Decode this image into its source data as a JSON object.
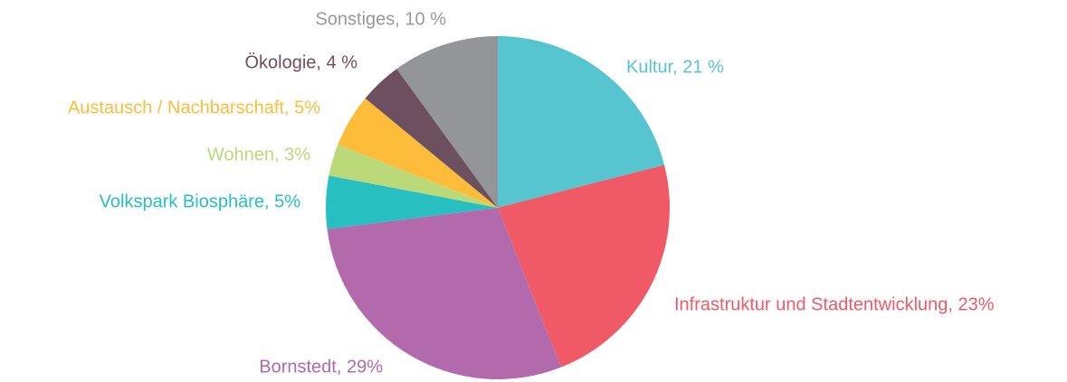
{
  "chart_data": {
    "type": "pie",
    "labels": [
      "Kultur, 21 %",
      "Infrastruktur und Stadtentwicklung, 23%",
      "Bornstedt, 29%",
      "Volkspark Biosphäre, 5%",
      "Wohnen, 3%",
      "Austausch / Nachbarschaft, 5%",
      "Ökologie, 4 %",
      "Sonstiges, 10 %"
    ],
    "values": [
      21,
      23,
      29,
      5,
      3,
      5,
      4,
      10
    ],
    "colors": [
      "#57c5cf",
      "#f05a67",
      "#b36aad",
      "#27bfc0",
      "#bcd97a",
      "#fdbd3a",
      "#6c5060",
      "#939598"
    ]
  }
}
